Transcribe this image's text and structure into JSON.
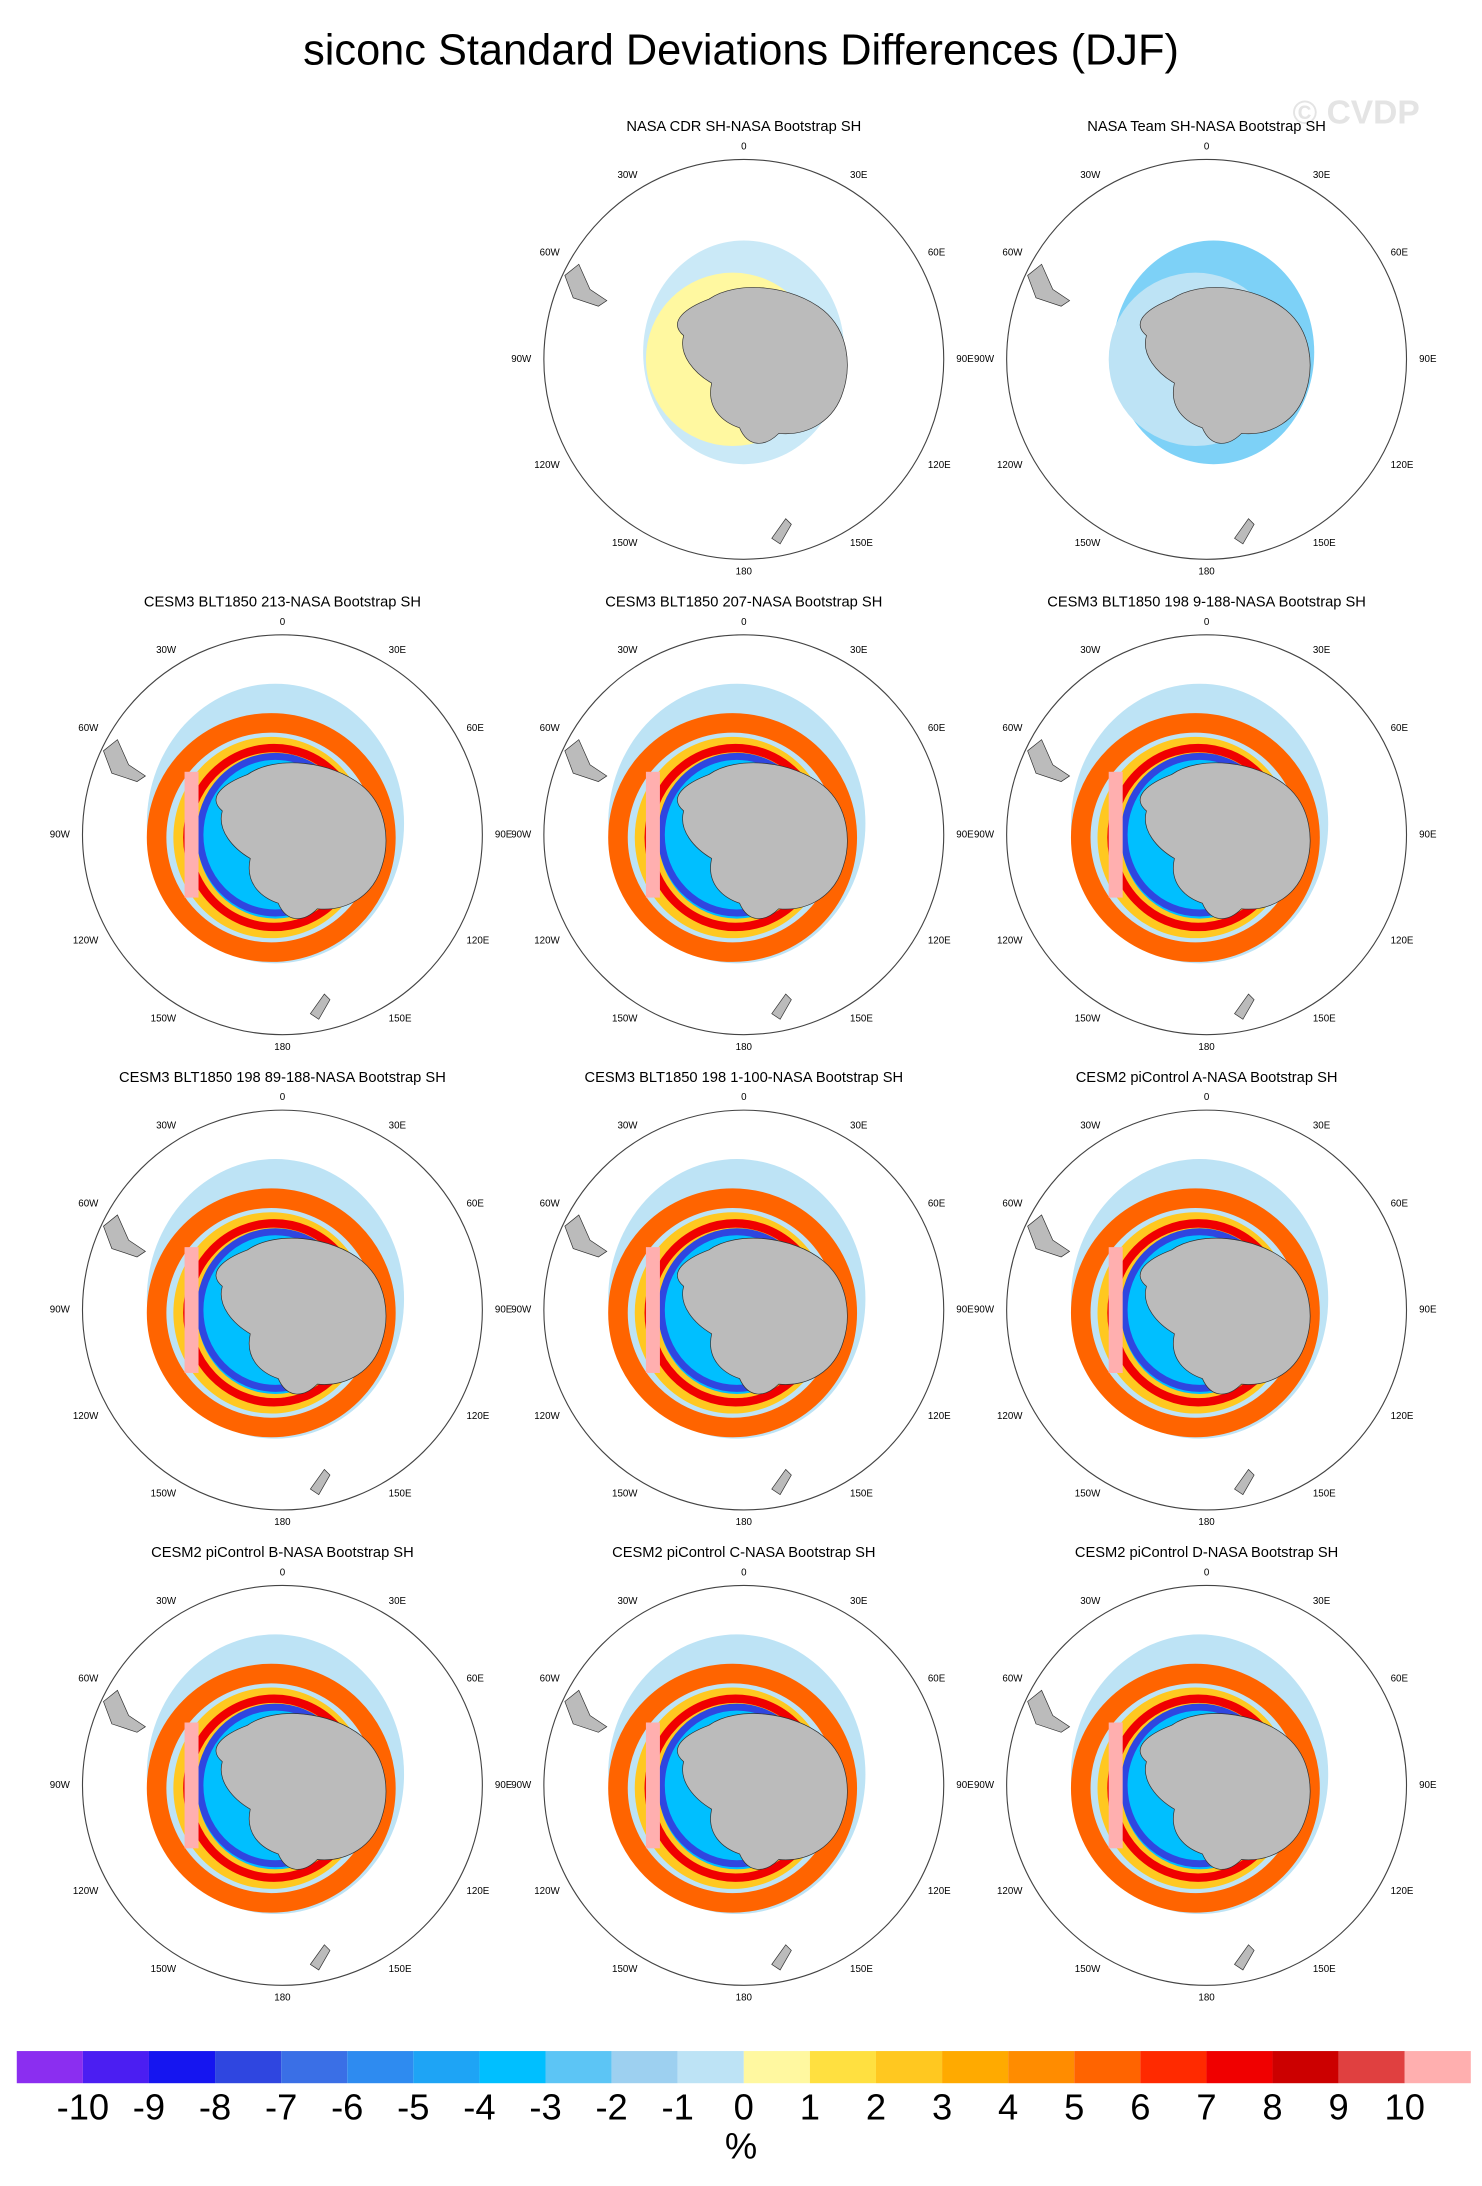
{
  "title": "siconc Standard Deviations Differences (DJF)",
  "watermark": "© CVDP",
  "longitudes": [
    "0",
    "30E",
    "60E",
    "90E",
    "120E",
    "150E",
    "180",
    "150W",
    "120W",
    "90W",
    "60W",
    "30W"
  ],
  "panels": [
    {
      "title": "NASA CDR SH-NASA Bootstrap SH"
    },
    {
      "title": "NASA Team SH-NASA Bootstrap SH"
    },
    {
      "title": "CESM3 BLT1850 213-NASA Bootstrap SH"
    },
    {
      "title": "CESM3 BLT1850 207-NASA Bootstrap SH"
    },
    {
      "title": "CESM3 BLT1850 198 9-188-NASA Bootstrap SH"
    },
    {
      "title": "CESM3 BLT1850 198 89-188-NASA Bootstrap SH"
    },
    {
      "title": "CESM3 BLT1850 198 1-100-NASA Bootstrap SH"
    },
    {
      "title": "CESM2 piControl A-NASA Bootstrap SH"
    },
    {
      "title": "CESM2 piControl B-NASA Bootstrap SH"
    },
    {
      "title": "CESM2 piControl C-NASA Bootstrap SH"
    },
    {
      "title": "CESM2 piControl D-NASA Bootstrap SH"
    }
  ],
  "colorbar": {
    "colors": [
      "#8B2EF0",
      "#4B1EF2",
      "#1515F0",
      "#2F46E0",
      "#3A6FE6",
      "#2E8BF0",
      "#1EA4F5",
      "#00BFFF",
      "#5CC5F5",
      "#9DD0F0",
      "#BDE3F5",
      "#FFF8A0",
      "#FFE040",
      "#FFC820",
      "#FFAA00",
      "#FF8C00",
      "#FF6400",
      "#FF2A00",
      "#F00000",
      "#CC0000",
      "#E04040",
      "#FFAFAF"
    ],
    "ticks": [
      -10,
      -9,
      -8,
      -7,
      -6,
      -5,
      -4,
      -3,
      -2,
      -1,
      0,
      1,
      2,
      3,
      4,
      5,
      6,
      7,
      8,
      9,
      10
    ],
    "unit": "%"
  }
}
